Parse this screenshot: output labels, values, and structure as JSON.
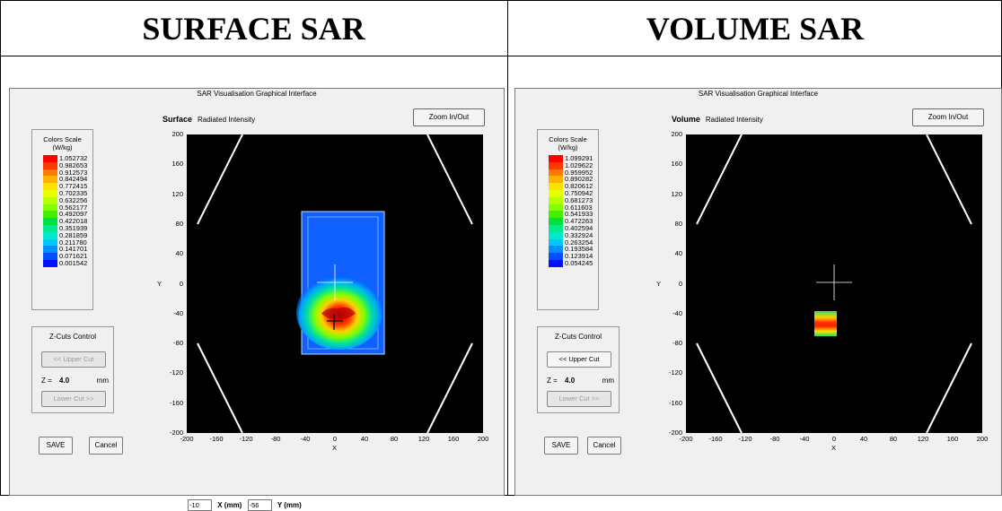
{
  "headers": {
    "left": "SURFACE SAR",
    "right": "VOLUME SAR"
  },
  "window_title": "SAR Visualisation Graphical Interface",
  "zoom_label": "Zoom In/Out",
  "scale_title_line1": "Colors Scale",
  "scale_title_line2": "(W/kg)",
  "zcuts": {
    "title": "Z-Cuts Control",
    "upper_label": "<< Upper Cut",
    "lower_label": "Lower Cut >>",
    "z_prefix": "Z =",
    "z_value": "4.0",
    "z_unit": "mm"
  },
  "save_label": "SAVE",
  "cancel_label": "Cancel",
  "axes": {
    "xlabel": "X",
    "ylabel": "Y",
    "xticks": [
      "-200",
      "-160",
      "-120",
      "-80",
      "-40",
      "0",
      "40",
      "80",
      "120",
      "160",
      "200"
    ],
    "yticks": [
      "200",
      "160",
      "120",
      "80",
      "40",
      "0",
      "-40",
      "-80",
      "-120",
      "-160",
      "-200"
    ]
  },
  "surface": {
    "mode": "Surface",
    "subtitle": "Radiated Intensity",
    "scale_values": [
      "1.052732",
      "0.982653",
      "0.912573",
      "0.842494",
      "0.772415",
      "0.702335",
      "0.632256",
      "0.562177",
      "0.492097",
      "0.422018",
      "0.351939",
      "0.281859",
      "0.211780",
      "0.141701",
      "0.071621",
      "0.001542"
    ],
    "x_input": "-10",
    "x_label": "X (mm)",
    "y_input": "-56",
    "y_label": "Y (mm)"
  },
  "volume": {
    "mode": "Volume",
    "subtitle": "Radiated Intensity",
    "scale_values": [
      "1.099291",
      "1.029622",
      "0.959952",
      "0.890282",
      "0.820612",
      "0.750942",
      "0.681273",
      "0.611603",
      "0.541933",
      "0.472263",
      "0.402594",
      "0.332924",
      "0.263254",
      "0.193584",
      "0.123914",
      "0.054245"
    ]
  },
  "colors": {
    "scale": [
      "#ff0000",
      "#ff3a00",
      "#ff7a00",
      "#ffb000",
      "#ffe000",
      "#e8ff00",
      "#b8ff00",
      "#80ff00",
      "#40f000",
      "#00e040",
      "#00e890",
      "#00e8d0",
      "#00c8ff",
      "#0090ff",
      "#0050ff",
      "#0010ff"
    ]
  }
}
